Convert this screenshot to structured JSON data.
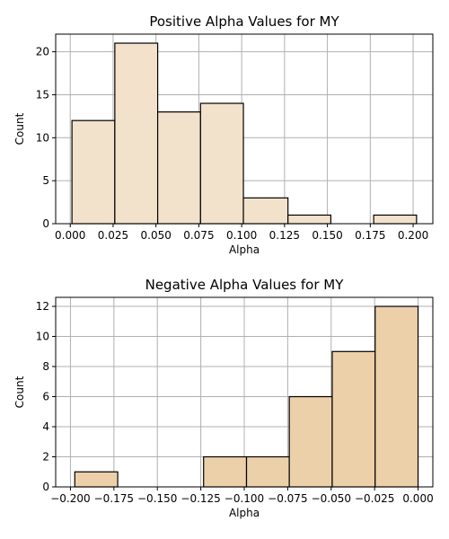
{
  "chart_data": [
    {
      "type": "bar",
      "title": "Positive Alpha Values for MY",
      "xlabel": "Alpha",
      "ylabel": "Count",
      "xlim": [
        -0.0085,
        0.2115
      ],
      "ylim": [
        0,
        22.05
      ],
      "xticks": [
        0.0,
        0.025,
        0.05,
        0.075,
        0.1,
        0.125,
        0.15,
        0.175,
        0.2
      ],
      "xtick_labels": [
        "0.000",
        "0.025",
        "0.050",
        "0.075",
        "0.100",
        "0.125",
        "0.150",
        "0.175",
        "0.200"
      ],
      "yticks": [
        0,
        5,
        10,
        15,
        20
      ],
      "ytick_labels": [
        "0",
        "5",
        "10",
        "15",
        "20"
      ],
      "grid": true,
      "bar_color": "#f2e2cb",
      "bins": [
        {
          "x0": 0.001,
          "x1": 0.026,
          "count": 12
        },
        {
          "x0": 0.026,
          "x1": 0.051,
          "count": 21
        },
        {
          "x0": 0.051,
          "x1": 0.076,
          "count": 13
        },
        {
          "x0": 0.076,
          "x1": 0.101,
          "count": 14
        },
        {
          "x0": 0.101,
          "x1": 0.127,
          "count": 3
        },
        {
          "x0": 0.127,
          "x1": 0.152,
          "count": 1
        },
        {
          "x0": 0.152,
          "x1": 0.177,
          "count": 0
        },
        {
          "x0": 0.177,
          "x1": 0.202,
          "count": 1
        }
      ]
    },
    {
      "type": "bar",
      "title": "Negative Alpha Values for MY",
      "xlabel": "Alpha",
      "ylabel": "Count",
      "xlim": [
        -0.2085,
        0.0085
      ],
      "ylim": [
        0,
        12.6
      ],
      "xticks": [
        -0.2,
        -0.175,
        -0.15,
        -0.125,
        -0.1,
        -0.075,
        -0.05,
        -0.025,
        0.0
      ],
      "xtick_labels": [
        "−0.200",
        "−0.175",
        "−0.150",
        "−0.125",
        "−0.100",
        "−0.075",
        "−0.050",
        "−0.025",
        "0.000"
      ],
      "yticks": [
        0,
        2,
        4,
        6,
        8,
        10,
        12
      ],
      "ytick_labels": [
        "0",
        "2",
        "4",
        "6",
        "8",
        "10",
        "12"
      ],
      "grid": true,
      "bar_color": "#ebd0a9",
      "bins": [
        {
          "x0": -0.1975,
          "x1": -0.1728,
          "count": 1
        },
        {
          "x0": -0.1728,
          "x1": -0.1481,
          "count": 0
        },
        {
          "x0": -0.1481,
          "x1": -0.1234,
          "count": 0
        },
        {
          "x0": -0.1234,
          "x1": -0.0987,
          "count": 2
        },
        {
          "x0": -0.0987,
          "x1": -0.0741,
          "count": 2
        },
        {
          "x0": -0.0741,
          "x1": -0.0494,
          "count": 6
        },
        {
          "x0": -0.0494,
          "x1": -0.0247,
          "count": 9
        },
        {
          "x0": -0.0247,
          "x1": 0.0,
          "count": 12
        }
      ]
    }
  ]
}
